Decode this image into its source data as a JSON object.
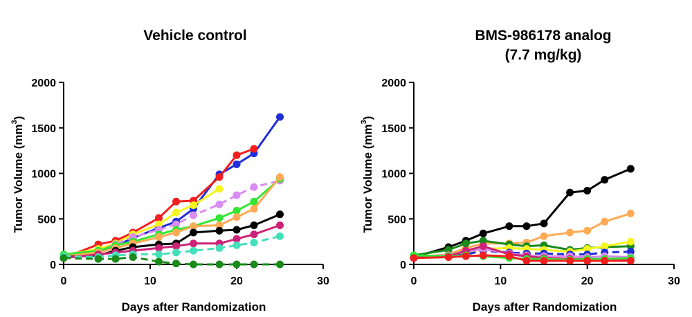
{
  "chart_data": [
    {
      "type": "line",
      "title": "Vehicle control",
      "subtitle": "",
      "xlabel": "Days after Randomization",
      "ylabel": "Tumor Volume (mm",
      "ylabel_superscript": "3",
      "ylabel_close": ")",
      "xlim": [
        0,
        30
      ],
      "ylim": [
        0,
        2000
      ],
      "xticks": [
        "0",
        "10",
        "20",
        "30"
      ],
      "yticks": [
        "0",
        "500",
        "1000",
        "1500",
        "2000"
      ],
      "grid": false,
      "series": [
        {
          "color": "#1f2ed6",
          "dashed": false,
          "x": [
            0,
            4,
            6,
            8,
            11,
            13,
            15,
            18,
            20,
            22,
            25
          ],
          "y": [
            80,
            150,
            200,
            290,
            400,
            470,
            610,
            990,
            1100,
            1220,
            1620
          ]
        },
        {
          "color": "#f21f1f",
          "dashed": false,
          "x": [
            0,
            4,
            6,
            8,
            11,
            13,
            15,
            18,
            20,
            22
          ],
          "y": [
            70,
            220,
            260,
            350,
            510,
            690,
            700,
            960,
            1200,
            1270
          ]
        },
        {
          "color": "#f5f51f",
          "dashed": false,
          "x": [
            0,
            4,
            6,
            8,
            11,
            13,
            15,
            18
          ],
          "y": [
            100,
            170,
            230,
            330,
            440,
            570,
            650,
            830
          ]
        },
        {
          "color": "#d98cf2",
          "dashed": true,
          "x": [
            0,
            4,
            6,
            8,
            11,
            13,
            15,
            18,
            20,
            22,
            25
          ],
          "y": [
            90,
            150,
            220,
            300,
            380,
            440,
            540,
            660,
            760,
            850,
            920
          ]
        },
        {
          "color": "#33e633",
          "dashed": false,
          "x": [
            0,
            4,
            6,
            8,
            11,
            13,
            15,
            18,
            20,
            22,
            25
          ],
          "y": [
            110,
            150,
            210,
            250,
            330,
            380,
            420,
            510,
            590,
            690,
            940
          ]
        },
        {
          "color": "#ffaa55",
          "dashed": false,
          "x": [
            0,
            4,
            6,
            8,
            11,
            13,
            15,
            18,
            20,
            22,
            25
          ],
          "y": [
            90,
            130,
            180,
            230,
            300,
            350,
            420,
            430,
            520,
            610,
            960
          ]
        },
        {
          "color": "#000000",
          "dashed": false,
          "x": [
            0,
            4,
            6,
            8,
            11,
            13,
            15,
            18,
            20,
            22,
            25
          ],
          "y": [
            80,
            100,
            150,
            190,
            220,
            230,
            350,
            370,
            380,
            430,
            550
          ]
        },
        {
          "color": "#cc2277",
          "dashed": false,
          "x": [
            0,
            4,
            6,
            8,
            11,
            13,
            15,
            18,
            20,
            22,
            25
          ],
          "y": [
            70,
            110,
            130,
            150,
            180,
            200,
            230,
            230,
            280,
            330,
            430
          ]
        },
        {
          "color": "#44e0bb",
          "dashed": true,
          "x": [
            0,
            4,
            6,
            8,
            11,
            13,
            15,
            18,
            20,
            22,
            25
          ],
          "y": [
            90,
            80,
            100,
            110,
            110,
            130,
            150,
            180,
            210,
            240,
            310
          ]
        },
        {
          "color": "#1a8a1a",
          "dashed": true,
          "x": [
            0,
            4,
            6,
            8,
            11,
            13,
            15,
            18,
            20,
            22,
            25
          ],
          "y": [
            70,
            60,
            60,
            80,
            30,
            10,
            0,
            0,
            0,
            0,
            0
          ]
        }
      ]
    },
    {
      "type": "line",
      "title": "BMS-986178 analog",
      "subtitle": "(7.7 mg/kg)",
      "xlabel": "Days after Randomization",
      "ylabel": "Tumor Volume (mm",
      "ylabel_superscript": "3",
      "ylabel_close": ")",
      "xlim": [
        0,
        30
      ],
      "ylim": [
        0,
        2000
      ],
      "xticks": [
        "0",
        "10",
        "20",
        "30"
      ],
      "yticks": [
        "0",
        "500",
        "1000",
        "1500",
        "2000"
      ],
      "grid": false,
      "series": [
        {
          "color": "#000000",
          "dashed": false,
          "x": [
            0,
            4,
            6,
            8,
            11,
            13,
            15,
            18,
            20,
            22,
            25
          ],
          "y": [
            80,
            190,
            260,
            340,
            420,
            420,
            450,
            790,
            810,
            930,
            1050
          ]
        },
        {
          "color": "#ffaa55",
          "dashed": false,
          "x": [
            0,
            4,
            6,
            8,
            11,
            13,
            15,
            18,
            20,
            22,
            25
          ],
          "y": [
            80,
            110,
            180,
            230,
            230,
            240,
            310,
            350,
            370,
            470,
            560
          ]
        },
        {
          "color": "#1a8a1a",
          "dashed": false,
          "x": [
            0,
            4,
            6,
            8,
            11,
            13,
            15,
            18,
            20,
            22,
            25
          ],
          "y": [
            100,
            160,
            230,
            260,
            220,
            200,
            210,
            160,
            180,
            190,
            200
          ]
        },
        {
          "color": "#f5f51f",
          "dashed": false,
          "x": [
            0,
            4,
            6,
            8,
            11,
            13,
            15,
            18,
            20,
            22,
            25
          ],
          "y": [
            80,
            100,
            130,
            170,
            180,
            170,
            160,
            140,
            170,
            200,
            250
          ]
        },
        {
          "color": "#1f2ed6",
          "dashed": true,
          "x": [
            0,
            4,
            6,
            8,
            11,
            13,
            15,
            18,
            20,
            22,
            25
          ],
          "y": [
            70,
            90,
            110,
            150,
            130,
            120,
            120,
            110,
            110,
            130,
            140
          ]
        },
        {
          "color": "#d98cf2",
          "dashed": false,
          "x": [
            0,
            4,
            6,
            8,
            11,
            13,
            15,
            18,
            20,
            22,
            25
          ],
          "y": [
            90,
            100,
            140,
            170,
            120,
            100,
            90,
            90,
            80,
            90,
            80
          ]
        },
        {
          "color": "#cc2277",
          "dashed": false,
          "x": [
            0,
            4,
            6,
            8,
            11,
            13,
            15,
            18,
            20,
            22,
            25
          ],
          "y": [
            80,
            90,
            150,
            200,
            110,
            90,
            70,
            60,
            60,
            60,
            60
          ]
        },
        {
          "color": "#33e633",
          "dashed": false,
          "x": [
            0,
            4,
            6,
            8,
            11,
            13,
            15,
            18,
            20,
            22,
            25
          ],
          "y": [
            100,
            90,
            100,
            90,
            70,
            60,
            60,
            50,
            60,
            60,
            70
          ]
        },
        {
          "color": "#f21f1f",
          "dashed": false,
          "x": [
            0,
            4,
            6,
            8,
            11,
            13,
            15,
            18,
            20,
            22,
            25
          ],
          "y": [
            70,
            80,
            90,
            100,
            90,
            40,
            40,
            40,
            40,
            40,
            40
          ]
        }
      ]
    }
  ]
}
